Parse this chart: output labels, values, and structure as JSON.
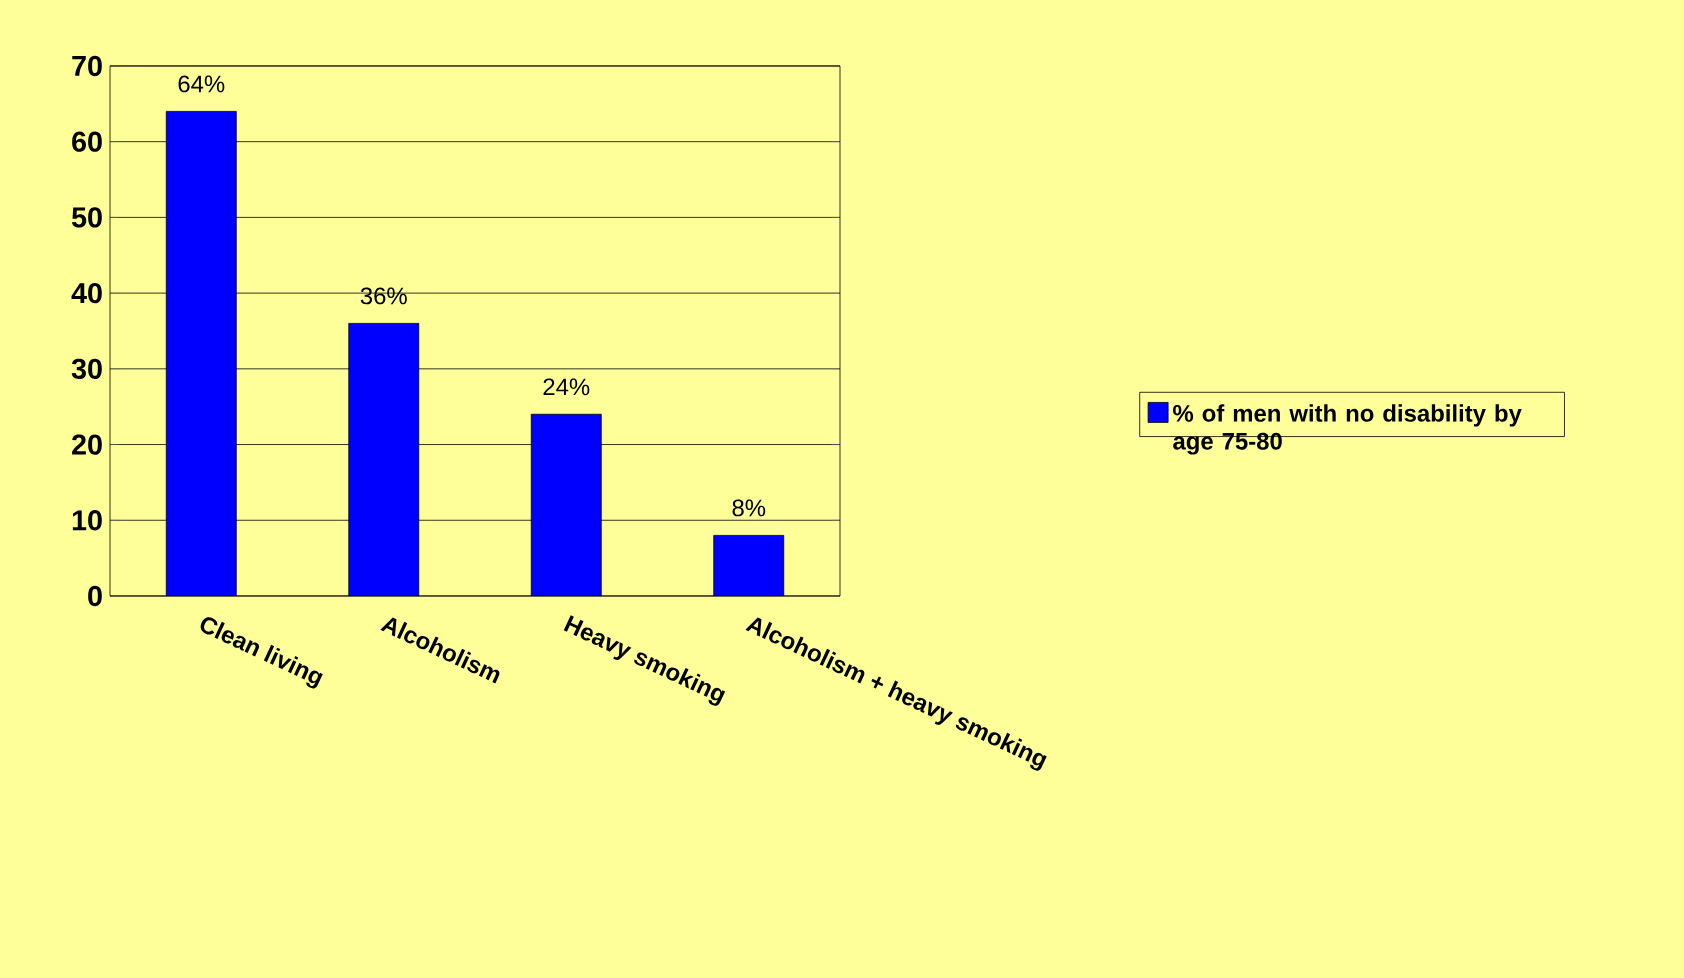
{
  "chart_data": {
    "type": "bar",
    "categories": [
      "Clean living",
      "Alcoholism",
      "Heavy smoking",
      "Alcoholism + heavy smoking"
    ],
    "series": [
      {
        "name": "% of men with no disability by age 75-80",
        "color": "#0000ff",
        "values": [
          64,
          36,
          24,
          8
        ],
        "value_labels": [
          "64%",
          "36%",
          "24%",
          "8%"
        ]
      }
    ],
    "ylim": [
      0,
      70
    ],
    "yticks": [
      0,
      10,
      20,
      30,
      40,
      50,
      60,
      70
    ],
    "grid": "y",
    "legend": "right"
  }
}
